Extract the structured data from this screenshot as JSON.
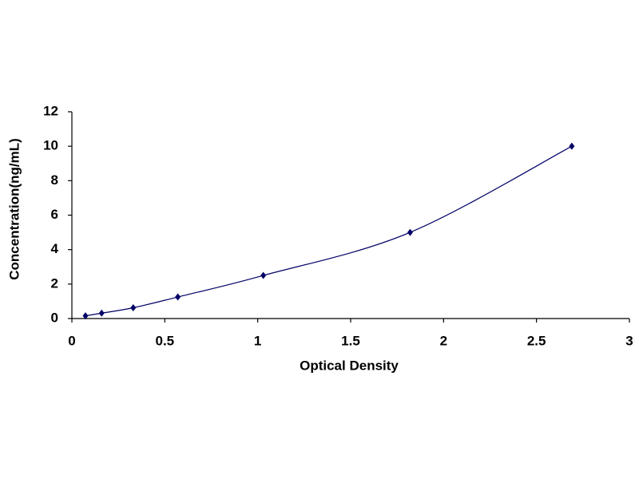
{
  "chart_data": {
    "type": "scatter",
    "x_label": "Optical Density",
    "y_label": "Concentration(ng/mL)",
    "x": [
      0.073,
      0.16,
      0.33,
      0.57,
      1.03,
      1.82,
      2.69
    ],
    "values": [
      0.156,
      0.312,
      0.625,
      1.25,
      2.5,
      5,
      10
    ],
    "color": "#000066",
    "xlim": [
      0,
      3
    ],
    "xticks": [
      0,
      0.5,
      1,
      1.5,
      2,
      2.5,
      3
    ],
    "ylim": [
      0,
      12
    ],
    "yticks": [
      0,
      2,
      4,
      6,
      8,
      10,
      12
    ],
    "grid": false
  }
}
